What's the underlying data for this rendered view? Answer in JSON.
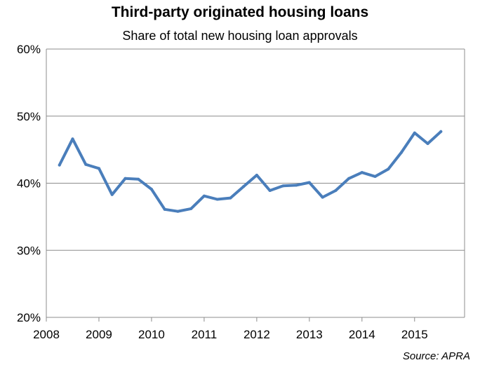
{
  "title": "Third-party originated housing loans",
  "subtitle": "Share of total new housing loan approvals",
  "source": "Source: APRA",
  "chart_data": {
    "type": "line",
    "title": "Third-party originated housing loans",
    "subtitle": "Share of total new housing loan approvals",
    "xlabel": "",
    "ylabel": "",
    "xlim": [
      2008,
      2015.95
    ],
    "ylim": [
      20,
      60
    ],
    "x_ticks": [
      "2008",
      "2009",
      "2010",
      "2011",
      "2012",
      "2013",
      "2014",
      "2015"
    ],
    "y_ticks": [
      "20%",
      "30%",
      "40%",
      "50%",
      "60%"
    ],
    "grid": true,
    "legend": "none",
    "line_color": "#4A7EBB",
    "series": [
      {
        "x": [
          2008.25,
          2008.5,
          2008.75,
          2009.0,
          2009.25,
          2009.5,
          2009.75,
          2010.0,
          2010.25,
          2010.5,
          2010.75,
          2011.0,
          2011.25,
          2011.5,
          2011.75,
          2012.0,
          2012.25,
          2012.5,
          2012.75,
          2013.0,
          2013.25,
          2013.5,
          2013.75,
          2014.0,
          2014.25,
          2014.5,
          2014.75,
          2015.0,
          2015.25,
          2015.5
        ],
        "values": [
          42.7,
          46.6,
          42.8,
          42.2,
          38.3,
          40.7,
          40.6,
          39.1,
          36.1,
          35.8,
          36.2,
          38.1,
          37.6,
          37.8,
          39.5,
          41.2,
          38.9,
          39.6,
          39.7,
          40.1,
          37.9,
          38.9,
          40.7,
          41.6,
          41.0,
          42.1,
          44.6,
          47.5,
          45.9,
          47.7
        ]
      }
    ]
  }
}
